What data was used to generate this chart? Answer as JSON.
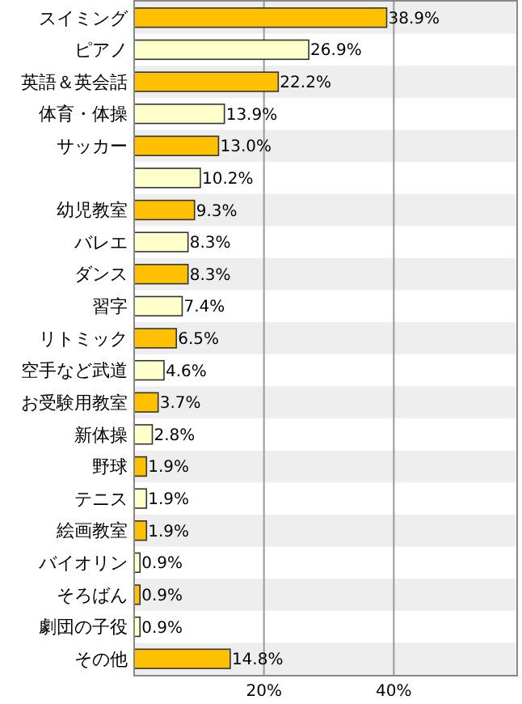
{
  "chart_data": {
    "type": "bar",
    "orientation": "horizontal",
    "categories": [
      "スイミング",
      "ピアノ",
      "英語＆英会話",
      "体育・体操",
      "サッカー",
      null,
      "幼児教室",
      "バレエ",
      "ダンス",
      "習字",
      "リトミック",
      "空手など武道",
      "お受験用教室",
      "新体操",
      "野球",
      "テニス",
      "絵画教室",
      "バイオリン",
      "そろばん",
      "劇団の子役",
      "その他"
    ],
    "values": [
      38.9,
      26.9,
      22.2,
      13.9,
      13.0,
      10.2,
      9.3,
      8.3,
      8.3,
      7.4,
      6.5,
      4.6,
      3.7,
      2.8,
      1.9,
      1.9,
      1.9,
      0.9,
      0.9,
      0.9,
      14.8
    ],
    "value_labels": [
      "38.9%",
      "26.9%",
      "22.2%",
      "13.9%",
      "13.0%",
      "10.2%",
      "9.3%",
      "8.3%",
      "8.3%",
      "7.4%",
      "6.5%",
      "4.6%",
      "3.7%",
      "2.8%",
      "1.9%",
      "1.9%",
      "1.9%",
      "0.9%",
      "0.9%",
      "0.9%",
      "14.8%"
    ],
    "colors": [
      "#ffc000",
      "#ffffcc",
      "#ffc000",
      "#ffffcc",
      "#ffc000",
      "#ffffcc",
      "#ffc000",
      "#ffffcc",
      "#ffc000",
      "#ffffcc",
      "#ffc000",
      "#ffffcc",
      "#ffc000",
      "#ffffcc",
      "#ffc000",
      "#ffffcc",
      "#ffc000",
      "#ffffcc",
      "#ffc000",
      "#ffffcc",
      "#ffc000"
    ],
    "xlim": [
      0,
      59
    ],
    "xticks": [
      {
        "value": 0,
        "label": null
      },
      {
        "value": 20,
        "label": "20%"
      },
      {
        "value": 40,
        "label": "40%"
      }
    ],
    "grid": "x"
  }
}
